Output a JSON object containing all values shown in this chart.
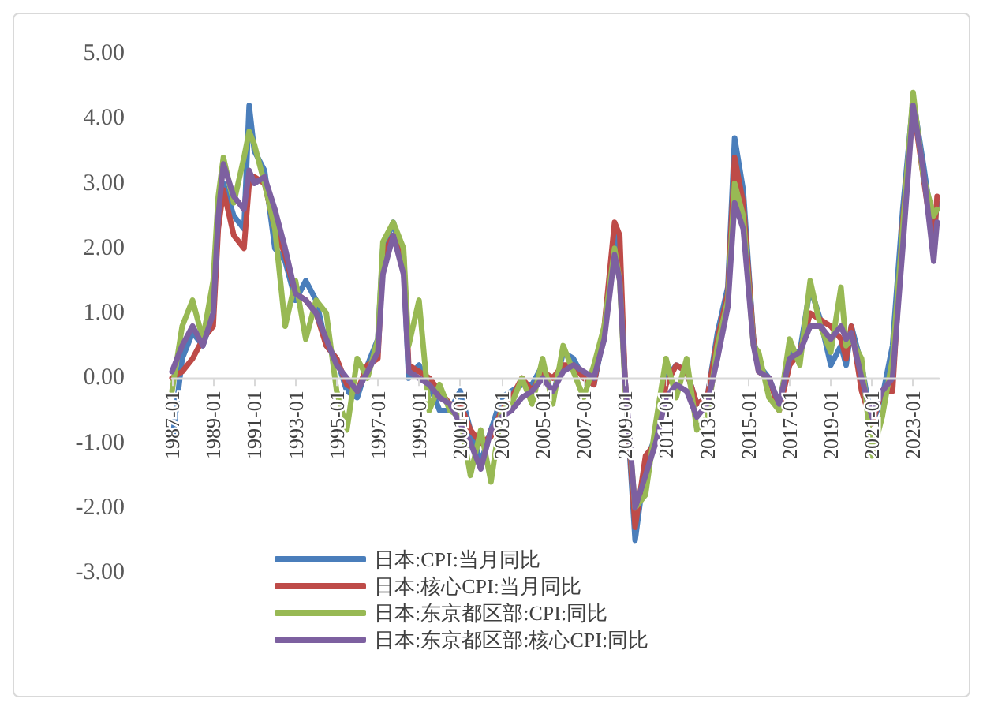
{
  "chart_data": {
    "type": "line",
    "x": [
      "1987-01",
      "1987-07",
      "1988-01",
      "1988-07",
      "1989-01",
      "1989-04",
      "1989-07",
      "1990-01",
      "1990-07",
      "1990-10",
      "1991-01",
      "1991-07",
      "1992-01",
      "1992-07",
      "1993-01",
      "1993-07",
      "1994-01",
      "1994-07",
      "1995-01",
      "1995-07",
      "1996-01",
      "1996-07",
      "1997-01",
      "1997-04",
      "1997-10",
      "1998-04",
      "1998-07",
      "1999-01",
      "1999-07",
      "2000-01",
      "2000-07",
      "2001-01",
      "2001-07",
      "2002-01",
      "2002-07",
      "2003-01",
      "2003-07",
      "2004-01",
      "2004-07",
      "2005-01",
      "2005-07",
      "2006-01",
      "2006-07",
      "2007-01",
      "2007-07",
      "2008-01",
      "2008-07",
      "2008-10",
      "2009-01",
      "2009-07",
      "2010-01",
      "2010-07",
      "2011-01",
      "2011-07",
      "2012-01",
      "2012-07",
      "2013-01",
      "2013-07",
      "2014-01",
      "2014-05",
      "2014-10",
      "2015-04",
      "2015-07",
      "2016-01",
      "2016-07",
      "2017-01",
      "2017-07",
      "2018-01",
      "2018-07",
      "2019-01",
      "2019-07",
      "2019-10",
      "2020-01",
      "2020-07",
      "2021-01",
      "2021-07",
      "2022-01",
      "2022-07",
      "2023-01",
      "2023-07",
      "2024-01",
      "2024-03"
    ],
    "series": [
      {
        "name": "日本:CPI:当月同比",
        "color": "#4a7ebb",
        "values": [
          -1.0,
          0.3,
          0.7,
          0.5,
          1.0,
          2.5,
          3.0,
          2.5,
          2.3,
          4.2,
          3.5,
          3.2,
          2.0,
          1.8,
          1.2,
          1.5,
          1.2,
          0.5,
          0.3,
          -0.2,
          -0.3,
          0.2,
          0.6,
          2.0,
          2.4,
          1.8,
          0.0,
          0.2,
          -0.1,
          -0.5,
          -0.5,
          -0.2,
          -0.8,
          -1.3,
          -0.8,
          -0.3,
          -0.2,
          -0.1,
          -0.1,
          0.2,
          -0.3,
          0.4,
          0.3,
          0.0,
          -0.1,
          0.7,
          2.3,
          1.7,
          0.0,
          -2.5,
          -1.3,
          -0.9,
          0.0,
          0.2,
          0.1,
          -0.4,
          -0.3,
          0.7,
          1.4,
          3.7,
          2.9,
          0.6,
          0.2,
          0.0,
          -0.4,
          0.4,
          0.4,
          1.4,
          0.9,
          0.2,
          0.5,
          0.2,
          0.8,
          0.2,
          -0.7,
          -0.3,
          0.5,
          2.6,
          4.3,
          3.3,
          2.2,
          2.7
        ]
      },
      {
        "name": "日本:核心CPI:当月同比",
        "color": "#be4b48",
        "values": [
          0.0,
          0.1,
          0.3,
          0.6,
          0.8,
          2.3,
          2.9,
          2.2,
          2.0,
          3.0,
          3.1,
          3.0,
          2.3,
          1.9,
          1.3,
          1.2,
          1.0,
          0.5,
          0.3,
          -0.1,
          -0.2,
          0.2,
          0.3,
          1.9,
          2.2,
          1.9,
          0.2,
          0.1,
          0.0,
          -0.2,
          -0.4,
          -0.4,
          -0.8,
          -1.0,
          -0.9,
          -0.5,
          -0.3,
          0.0,
          -0.2,
          0.1,
          0.0,
          0.2,
          0.2,
          0.0,
          -0.1,
          0.8,
          2.4,
          2.2,
          0.0,
          -2.3,
          -1.2,
          -1.0,
          -0.1,
          0.2,
          0.1,
          -0.4,
          -0.3,
          0.6,
          1.3,
          3.4,
          2.7,
          0.6,
          0.1,
          0.0,
          -0.5,
          0.2,
          0.4,
          1.0,
          0.9,
          0.8,
          0.6,
          0.3,
          0.8,
          -0.2,
          -0.7,
          -0.2,
          -0.2,
          2.4,
          4.2,
          3.1,
          2.0,
          2.8
        ]
      },
      {
        "name": "日本:东京都区部:CPI:同比",
        "color": "#98b954",
        "values": [
          -0.2,
          0.8,
          1.2,
          0.6,
          1.5,
          2.8,
          3.4,
          2.7,
          3.4,
          3.8,
          3.6,
          3.0,
          2.3,
          0.8,
          1.5,
          0.6,
          1.2,
          1.0,
          -0.2,
          -0.8,
          0.3,
          0.0,
          0.6,
          2.1,
          2.4,
          2.0,
          0.5,
          1.2,
          -0.5,
          -0.1,
          -0.5,
          -0.6,
          -1.5,
          -0.8,
          -1.6,
          -0.5,
          -0.4,
          0.0,
          -0.4,
          0.3,
          -0.4,
          0.5,
          0.1,
          -0.3,
          0.2,
          0.8,
          2.0,
          1.5,
          -0.1,
          -2.0,
          -1.8,
          -0.7,
          0.3,
          -0.3,
          0.3,
          -0.8,
          -0.6,
          0.5,
          1.2,
          3.0,
          2.5,
          0.5,
          0.4,
          -0.3,
          -0.5,
          0.6,
          0.2,
          1.5,
          0.8,
          0.4,
          1.4,
          0.5,
          0.6,
          0.3,
          -1.2,
          -0.6,
          0.3,
          2.3,
          4.4,
          3.1,
          2.5,
          2.6
        ]
      },
      {
        "name": "日本:东京都区部:核心CPI:同比",
        "color": "#7d60a0",
        "values": [
          0.1,
          0.5,
          0.8,
          0.5,
          1.0,
          2.5,
          3.3,
          2.8,
          2.6,
          3.2,
          3.0,
          3.1,
          2.6,
          2.0,
          1.3,
          1.2,
          1.0,
          0.6,
          0.2,
          0.0,
          -0.2,
          0.1,
          0.4,
          1.6,
          2.2,
          1.6,
          0.1,
          0.0,
          -0.1,
          -0.3,
          -0.4,
          -0.7,
          -1.0,
          -1.4,
          -0.8,
          -0.6,
          -0.5,
          -0.3,
          -0.2,
          0.0,
          -0.2,
          0.1,
          0.2,
          0.1,
          0.0,
          0.6,
          1.9,
          1.5,
          0.0,
          -2.0,
          -1.5,
          -1.0,
          -0.3,
          -0.1,
          -0.2,
          -0.6,
          -0.4,
          0.3,
          1.1,
          2.7,
          2.3,
          0.5,
          0.1,
          0.0,
          -0.4,
          0.3,
          0.4,
          0.8,
          0.8,
          0.6,
          0.8,
          0.6,
          0.7,
          0.0,
          -0.6,
          -0.2,
          0.0,
          2.0,
          4.2,
          3.2,
          1.8,
          2.4
        ]
      }
    ],
    "xlim": [
      "1987-01",
      "2024-04"
    ],
    "xticks": [
      "1987-01",
      "1989-01",
      "1991-01",
      "1993-01",
      "1995-01",
      "1997-01",
      "1999-01",
      "2001-01",
      "2003-01",
      "2005-01",
      "2007-01",
      "2009-01",
      "2011-01",
      "2013-01",
      "2015-01",
      "2017-01",
      "2019-01",
      "2021-01",
      "2023-01"
    ],
    "ylim": [
      -3,
      5
    ],
    "yticks": [
      {
        "value": -3,
        "label": "-3.00"
      },
      {
        "value": -2,
        "label": "-2.00"
      },
      {
        "value": -1,
        "label": "-1.00"
      },
      {
        "value": 0,
        "label": "0.00"
      },
      {
        "value": 1,
        "label": "1.00"
      },
      {
        "value": 2,
        "label": "2.00"
      },
      {
        "value": 3,
        "label": "3.00"
      },
      {
        "value": 4,
        "label": "4.00"
      },
      {
        "value": 5,
        "label": "5.00"
      }
    ],
    "grid": false,
    "legend": "bottom left",
    "marker": "none",
    "line_style": "solid"
  }
}
